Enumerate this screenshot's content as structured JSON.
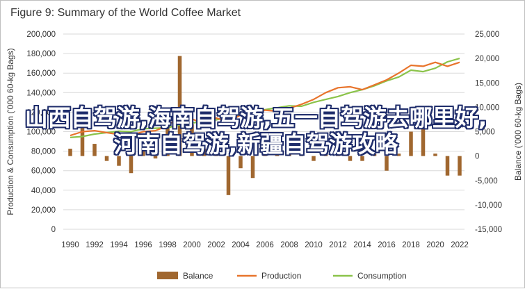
{
  "overlay_text": "山西自驾游,海南自驾游,五一自驾游去哪里好,河南自驾游,新疆自驾游攻略",
  "colors": {
    "balance": "#a0672f",
    "production": "#e8742c",
    "consumption": "#8bc34a",
    "grid": "#d9d9d9",
    "axis_text": "#333333"
  },
  "chart_data": {
    "type": "bar+line",
    "title": "Figure 9: Summary of the World Coffee Market",
    "ylabel_left": "Production & Consumption ('000 60-kg Bags)",
    "ylabel_right": "Balance ('000 60-kg Bags)",
    "ylim_left": [
      0,
      200000
    ],
    "ylim_right": [
      -15000,
      25000
    ],
    "left_ticks": [
      "0",
      "20,000",
      "40,000",
      "60,000",
      "80,000",
      "100,000",
      "120,000",
      "140,000",
      "160,000",
      "180,000",
      "200,000"
    ],
    "right_ticks": [
      "-15,000",
      "-10,000",
      "-5,000",
      "0",
      "5,000",
      "10,000",
      "15,000",
      "20,000",
      "25,000"
    ],
    "x_tick_labels": [
      "1990",
      "1992",
      "1994",
      "1996",
      "1998",
      "2000",
      "2002",
      "2004",
      "2006",
      "2008",
      "2010",
      "2012",
      "2014",
      "2016",
      "2018",
      "2020",
      "2022"
    ],
    "years": [
      1990,
      1991,
      1992,
      1993,
      1994,
      1995,
      1996,
      1997,
      1998,
      1999,
      2000,
      2001,
      2002,
      2003,
      2004,
      2005,
      2006,
      2007,
      2008,
      2009,
      2010,
      2011,
      2012,
      2013,
      2014,
      2015,
      2016,
      2017,
      2018,
      2019,
      2020,
      2021,
      2022
    ],
    "series": [
      {
        "name": "Balance",
        "type": "bar",
        "axis": "right",
        "values": [
          1500,
          7000,
          2500,
          -1000,
          -2000,
          -3500,
          2000,
          -500,
          6000,
          20500,
          6500,
          1500,
          3000,
          -8000,
          -2500,
          -4500,
          1000,
          1500,
          500,
          2500,
          -1000,
          1000,
          1000,
          -1000,
          -1000,
          500,
          -3000,
          500,
          5000,
          5500,
          500,
          -4000,
          -4000
        ]
      },
      {
        "name": "Production",
        "type": "line",
        "axis": "left",
        "values": [
          96000,
          100000,
          101000,
          99000,
          97000,
          96500,
          100000,
          101000,
          106000,
          116000,
          113000,
          108000,
          114000,
          110000,
          117000,
          117000,
          122000,
          121000,
          124000,
          128000,
          133000,
          140000,
          145000,
          146000,
          143000,
          148000,
          153000,
          160000,
          168000,
          167000,
          171000,
          167000,
          171000
        ]
      },
      {
        "name": "Consumption",
        "type": "line",
        "axis": "left",
        "values": [
          94000,
          95000,
          97500,
          99000,
          100500,
          100000,
          103000,
          103500,
          104000,
          107000,
          109000,
          110000,
          112000,
          115000,
          117500,
          120000,
          122500,
          124500,
          126500,
          126000,
          130000,
          133000,
          136000,
          140000,
          143000,
          147000,
          152000,
          156000,
          163000,
          161500,
          165000,
          171500,
          175000
        ]
      }
    ],
    "legend": [
      "Balance",
      "Production",
      "Consumption"
    ],
    "legend_position": "bottom",
    "grid": true
  }
}
